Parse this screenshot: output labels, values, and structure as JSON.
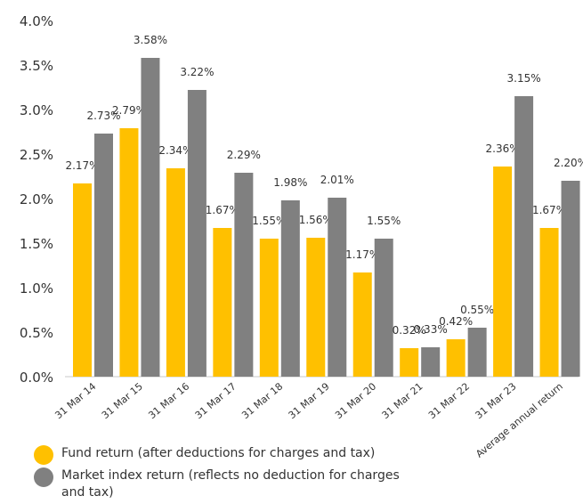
{
  "chart_data": {
    "type": "bar",
    "categories": [
      "31 Mar 14",
      "31 Mar 15",
      "31 Mar 16",
      "31 Mar 17",
      "31 Mar 18",
      "31 Mar 19",
      "31 Mar 20",
      "31 Mar 21",
      "31 Mar 22",
      "31 Mar 23",
      "Average annual return"
    ],
    "series": [
      {
        "name": "Fund return (after deductions for charges and tax)",
        "color": "#FFC000",
        "values": [
          2.17,
          2.79,
          2.34,
          1.67,
          1.55,
          1.56,
          1.17,
          0.32,
          0.42,
          2.36,
          1.67
        ],
        "labels": [
          "2.17%",
          "2.79%",
          "2.34%",
          "1.67%",
          "1.55%",
          "1.56%",
          "1.17%",
          "0.32%",
          "0.42%",
          "2.36%",
          "1.67%"
        ]
      },
      {
        "name": "Market index return (reflects no deduction for charges and tax)",
        "color": "#808080",
        "values": [
          2.73,
          3.58,
          3.22,
          2.29,
          1.98,
          2.01,
          1.55,
          0.33,
          0.55,
          3.15,
          2.2
        ],
        "labels": [
          "2.73%",
          "3.58%",
          "3.22%",
          "2.29%",
          "1.98%",
          "2.01%",
          "1.55%",
          "0.33%",
          "0.55%",
          "3.15%",
          "2.20%"
        ]
      }
    ],
    "yticks": [
      "0.0%",
      "0.5%",
      "1.0%",
      "1.5%",
      "2.0%",
      "2.5%",
      "3.0%",
      "3.5%",
      "4.0%"
    ],
    "ylim": [
      0,
      4
    ],
    "grid": false,
    "legend_position": "bottom-left"
  },
  "legend": [
    {
      "text": "Fund return (after deductions for charges and tax)",
      "color": "#FFC000"
    },
    {
      "text": "Market index return (reflects no deduction for charges and tax)",
      "color": "#808080"
    }
  ]
}
